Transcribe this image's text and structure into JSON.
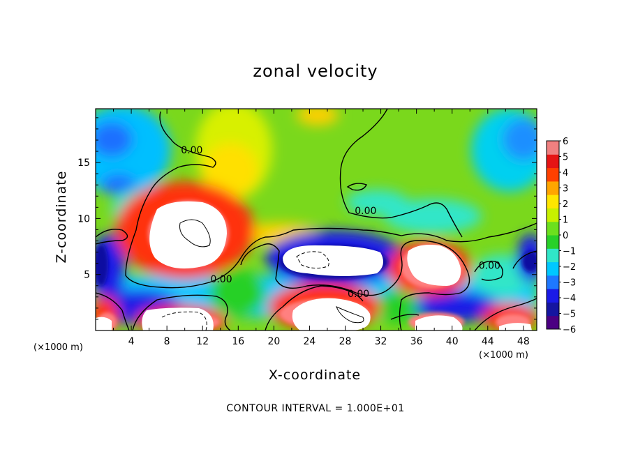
{
  "chart_data": {
    "type": "heatmap",
    "title": "zonal velocity",
    "xlabel": "X-coordinate",
    "ylabel": "Z-coordinate",
    "x_unit_label": "(×1000 m)",
    "z_unit_label": "(×1000 m)",
    "xlim": [
      0,
      49.5
    ],
    "ylim": [
      0,
      19.8
    ],
    "x_ticks": [
      4,
      8,
      12,
      16,
      20,
      24,
      28,
      32,
      36,
      40,
      44,
      48
    ],
    "y_ticks": [
      5,
      10,
      15
    ],
    "colorbar": {
      "min": -6,
      "max": 6,
      "ticks": [
        6,
        5,
        4,
        3,
        2,
        1,
        0,
        -1,
        -2,
        -3,
        -4,
        -5,
        -6
      ],
      "colors": [
        "#4b0082",
        "#1515a0",
        "#1a1ae6",
        "#1e78ff",
        "#00c8ff",
        "#30e6c8",
        "#28d028",
        "#6ce01e",
        "#c8f000",
        "#ffe600",
        "#ffa500",
        "#ff4000",
        "#e61414",
        "#f08080"
      ]
    },
    "contour_labels": [
      {
        "text": "0.00",
        "x": 10.8,
        "z": 15.8
      },
      {
        "text": "0.00",
        "x": 30.3,
        "z": 10.4
      },
      {
        "text": "0.00",
        "x": 14.1,
        "z": 4.3
      },
      {
        "text": "0.00",
        "x": 29.5,
        "z": 3.0
      },
      {
        "text": "0.00",
        "x": 44.2,
        "z": 5.5
      }
    ],
    "contour_interval_text": "CONTOUR INTERVAL = 1.000E+01"
  }
}
